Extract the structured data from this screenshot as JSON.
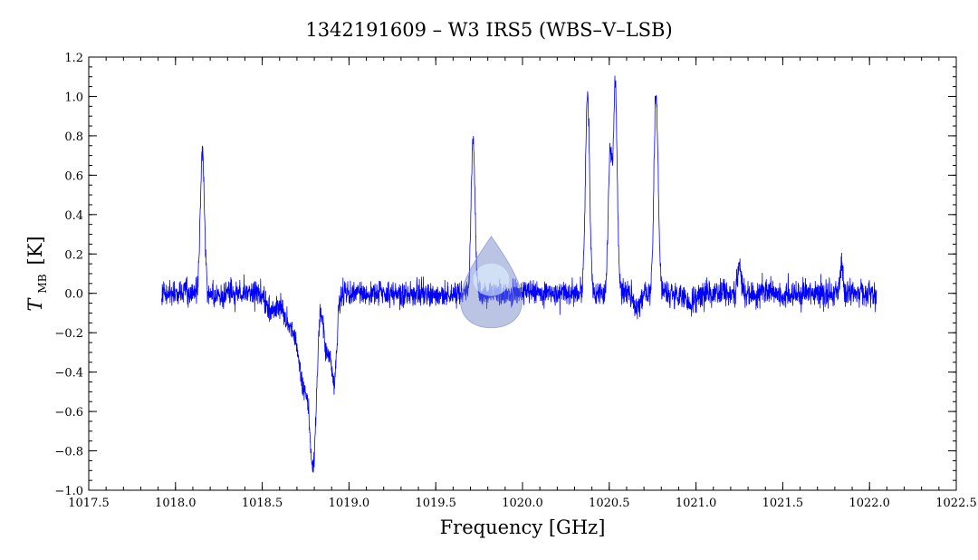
{
  "chart_data": {
    "type": "line",
    "title": "1342191609 – W3 IRS5 (WBS–V–LSB)",
    "xlabel": "Frequency [GHz]",
    "ylabel_main": "T",
    "ylabel_sub": "MB",
    "ylabel_unit": "[K]",
    "xlim": [
      1017.5,
      1022.5
    ],
    "ylim": [
      -1.0,
      1.2
    ],
    "x_ticks": [
      1017.5,
      1018.0,
      1018.5,
      1019.0,
      1019.5,
      1020.0,
      1020.5,
      1021.0,
      1021.5,
      1022.0,
      1022.5
    ],
    "x_tick_labels": [
      "1017.5",
      "1018.0",
      "1018.5",
      "1019.0",
      "1019.5",
      "1020.0",
      "1020.5",
      "1021.0",
      "1021.5",
      "1022.0",
      "1022.5"
    ],
    "y_ticks": [
      -1.0,
      -0.8,
      -0.6,
      -0.4,
      -0.2,
      0.0,
      0.2,
      0.4,
      0.6,
      0.8,
      1.0,
      1.2
    ],
    "y_tick_labels": [
      "−1.0",
      "−0.8",
      "−0.6",
      "−0.4",
      "−0.2",
      "0.0",
      "0.2",
      "0.4",
      "0.6",
      "0.8",
      "1.0",
      "1.2"
    ],
    "grid": false,
    "series": [
      {
        "color": "#0000ff",
        "x_range": [
          1017.92,
          1022.04
        ],
        "noise_rms": 0.045,
        "features": [
          {
            "type": "emission",
            "center": 1018.155,
            "amplitude": 0.72,
            "width": 0.012
          },
          {
            "type": "absorption",
            "center": 1018.56,
            "amplitude": -0.1,
            "width": 0.03
          },
          {
            "type": "absorption",
            "center": 1018.66,
            "amplitude": -0.15,
            "width": 0.035
          },
          {
            "type": "absorption",
            "center": 1018.745,
            "amplitude": -0.48,
            "width": 0.035
          },
          {
            "type": "absorption",
            "center": 1018.795,
            "amplitude": -0.72,
            "width": 0.018
          },
          {
            "type": "absorption",
            "center": 1018.875,
            "amplitude": -0.3,
            "width": 0.02
          },
          {
            "type": "absorption",
            "center": 1018.915,
            "amplitude": -0.42,
            "width": 0.015
          },
          {
            "type": "emission",
            "center": 1019.715,
            "amplitude": 0.8,
            "width": 0.011
          },
          {
            "type": "emission",
            "center": 1020.375,
            "amplitude": 1.02,
            "width": 0.012
          },
          {
            "type": "emission",
            "center": 1020.505,
            "amplitude": 0.7,
            "width": 0.011
          },
          {
            "type": "emission",
            "center": 1020.535,
            "amplitude": 1.03,
            "width": 0.011
          },
          {
            "type": "emission",
            "center": 1020.77,
            "amplitude": 1.03,
            "width": 0.012
          },
          {
            "type": "absorption",
            "center": 1020.655,
            "amplitude": -0.08,
            "width": 0.015
          },
          {
            "type": "absorption",
            "center": 1020.97,
            "amplitude": -0.06,
            "width": 0.02
          },
          {
            "type": "emission",
            "center": 1021.25,
            "amplitude": 0.14,
            "width": 0.01
          },
          {
            "type": "emission",
            "center": 1021.84,
            "amplitude": 0.14,
            "width": 0.01
          }
        ]
      }
    ]
  },
  "watermark": {
    "icon": "droplet-watermark-icon",
    "center_x": 1019.82,
    "center_y": 0.0,
    "color": "#6b7cc0"
  }
}
